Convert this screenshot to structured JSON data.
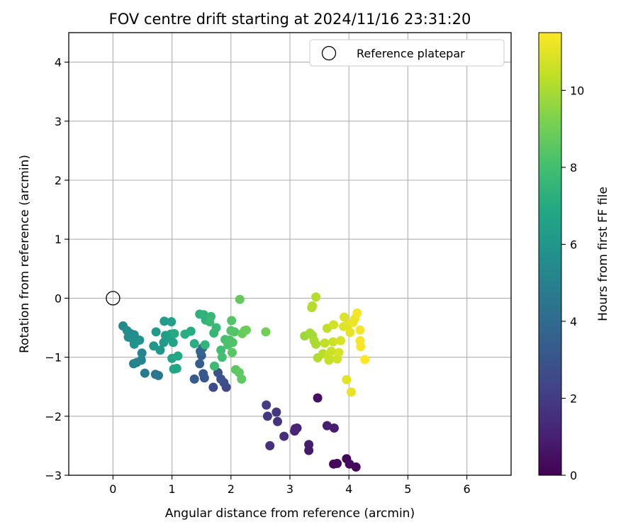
{
  "chart_data": {
    "type": "scatter",
    "title": "FOV centre drift starting at 2024/11/16 23:31:20",
    "xlabel": "Angular distance from reference (arcmin)",
    "ylabel": "Rotation from reference (arcmin)",
    "xlim": [
      -0.75,
      6.75
    ],
    "ylim": [
      -3,
      4.5
    ],
    "xticks": [
      0,
      1,
      2,
      3,
      4,
      5,
      6
    ],
    "yticks": [
      -3,
      -2,
      -1,
      0,
      1,
      2,
      3,
      4
    ],
    "grid": true,
    "legend": {
      "position": "top-right",
      "entries": [
        {
          "label": "Reference platepar",
          "marker": "open-circle"
        }
      ]
    },
    "reference_point": {
      "x": 0,
      "y": 0
    },
    "colorbar": {
      "label": "Hours from first FF file",
      "colormap": "viridis",
      "range": [
        0,
        11.5
      ],
      "ticks": [
        0,
        2,
        4,
        6,
        8,
        10
      ]
    },
    "points": [
      {
        "x": 3.74,
        "y": -2.81,
        "t": 0.2
      },
      {
        "x": 3.8,
        "y": -2.8,
        "t": 0.3
      },
      {
        "x": 3.96,
        "y": -2.72,
        "t": 0.1
      },
      {
        "x": 4.01,
        "y": -2.81,
        "t": 0.4
      },
      {
        "x": 4.12,
        "y": -2.86,
        "t": 0.2
      },
      {
        "x": 3.47,
        "y": -1.69,
        "t": 0.5
      },
      {
        "x": 3.32,
        "y": -2.48,
        "t": 0.9
      },
      {
        "x": 3.32,
        "y": -2.58,
        "t": 0.8
      },
      {
        "x": 3.08,
        "y": -2.25,
        "t": 1.1
      },
      {
        "x": 3.12,
        "y": -2.2,
        "t": 1.0
      },
      {
        "x": 3.09,
        "y": -2.21,
        "t": 1.2
      },
      {
        "x": 3.63,
        "y": -2.16,
        "t": 1.0
      },
      {
        "x": 3.75,
        "y": -2.2,
        "t": 0.9
      },
      {
        "x": 2.9,
        "y": -2.34,
        "t": 1.5
      },
      {
        "x": 2.79,
        "y": -2.09,
        "t": 1.7
      },
      {
        "x": 2.77,
        "y": -1.93,
        "t": 1.8
      },
      {
        "x": 2.62,
        "y": -2.0,
        "t": 1.9
      },
      {
        "x": 2.6,
        "y": -1.81,
        "t": 2.0
      },
      {
        "x": 2.66,
        "y": -2.5,
        "t": 1.6
      },
      {
        "x": 1.7,
        "y": -1.51,
        "t": 2.6
      },
      {
        "x": 1.92,
        "y": -1.51,
        "t": 2.5
      },
      {
        "x": 1.88,
        "y": -1.43,
        "t": 2.7
      },
      {
        "x": 1.83,
        "y": -1.37,
        "t": 2.8
      },
      {
        "x": 1.78,
        "y": -1.26,
        "t": 2.9
      },
      {
        "x": 1.55,
        "y": -1.35,
        "t": 3.1
      },
      {
        "x": 1.53,
        "y": -1.28,
        "t": 3.2
      },
      {
        "x": 1.38,
        "y": -1.37,
        "t": 3.3
      },
      {
        "x": 1.47,
        "y": -1.11,
        "t": 3.4
      },
      {
        "x": 1.5,
        "y": -0.97,
        "t": 3.5
      },
      {
        "x": 1.52,
        "y": -0.84,
        "t": 3.7
      },
      {
        "x": 1.48,
        "y": -0.9,
        "t": 3.8
      },
      {
        "x": 0.72,
        "y": -1.29,
        "t": 4.5
      },
      {
        "x": 0.77,
        "y": -1.31,
        "t": 4.6
      },
      {
        "x": 0.54,
        "y": -1.27,
        "t": 4.8
      },
      {
        "x": 0.35,
        "y": -1.11,
        "t": 5.0
      },
      {
        "x": 0.4,
        "y": -1.09,
        "t": 5.1
      },
      {
        "x": 0.48,
        "y": -1.05,
        "t": 5.2
      },
      {
        "x": 0.49,
        "y": -0.93,
        "t": 5.3
      },
      {
        "x": 0.17,
        "y": -0.47,
        "t": 5.4
      },
      {
        "x": 0.24,
        "y": -0.55,
        "t": 5.5
      },
      {
        "x": 0.26,
        "y": -0.66,
        "t": 5.6
      },
      {
        "x": 0.3,
        "y": -0.6,
        "t": 5.5
      },
      {
        "x": 0.34,
        "y": -0.7,
        "t": 5.7
      },
      {
        "x": 0.36,
        "y": -0.78,
        "t": 5.8
      },
      {
        "x": 0.45,
        "y": -0.71,
        "t": 5.9
      },
      {
        "x": 0.36,
        "y": -0.62,
        "t": 5.6
      },
      {
        "x": 0.69,
        "y": -0.81,
        "t": 6.0
      },
      {
        "x": 0.8,
        "y": -0.88,
        "t": 6.1
      },
      {
        "x": 0.86,
        "y": -0.75,
        "t": 6.2
      },
      {
        "x": 0.73,
        "y": -0.57,
        "t": 6.2
      },
      {
        "x": 0.87,
        "y": -0.39,
        "t": 6.3
      },
      {
        "x": 0.89,
        "y": -0.63,
        "t": 6.4
      },
      {
        "x": 0.92,
        "y": -0.67,
        "t": 6.4
      },
      {
        "x": 0.99,
        "y": -0.4,
        "t": 6.5
      },
      {
        "x": 0.98,
        "y": -0.61,
        "t": 6.5
      },
      {
        "x": 1.02,
        "y": -0.75,
        "t": 6.6
      },
      {
        "x": 1.0,
        "y": -1.02,
        "t": 6.7
      },
      {
        "x": 1.03,
        "y": -1.2,
        "t": 6.8
      },
      {
        "x": 1.08,
        "y": -1.19,
        "t": 6.8
      },
      {
        "x": 1.1,
        "y": -0.98,
        "t": 6.9
      },
      {
        "x": 1.04,
        "y": -0.6,
        "t": 7.0
      },
      {
        "x": 1.22,
        "y": -0.61,
        "t": 7.1
      },
      {
        "x": 1.32,
        "y": -0.56,
        "t": 7.1
      },
      {
        "x": 1.38,
        "y": -0.77,
        "t": 7.2
      },
      {
        "x": 1.47,
        "y": -0.27,
        "t": 7.3
      },
      {
        "x": 1.54,
        "y": -0.28,
        "t": 7.4
      },
      {
        "x": 1.57,
        "y": -0.37,
        "t": 7.4
      },
      {
        "x": 1.56,
        "y": -0.79,
        "t": 7.5
      },
      {
        "x": 1.66,
        "y": -0.31,
        "t": 7.6
      },
      {
        "x": 1.71,
        "y": -0.59,
        "t": 7.6
      },
      {
        "x": 1.75,
        "y": -0.5,
        "t": 7.7
      },
      {
        "x": 1.64,
        "y": -0.4,
        "t": 7.7
      },
      {
        "x": 1.72,
        "y": -1.15,
        "t": 7.8
      },
      {
        "x": 1.83,
        "y": -0.88,
        "t": 7.9
      },
      {
        "x": 1.85,
        "y": -1.0,
        "t": 8.0
      },
      {
        "x": 1.9,
        "y": -0.7,
        "t": 8.1
      },
      {
        "x": 1.95,
        "y": -0.79,
        "t": 8.2
      },
      {
        "x": 1.98,
        "y": -0.71,
        "t": 8.2
      },
      {
        "x": 2.03,
        "y": -0.75,
        "t": 8.3
      },
      {
        "x": 2.06,
        "y": -0.57,
        "t": 8.3
      },
      {
        "x": 2.0,
        "y": -0.55,
        "t": 8.4
      },
      {
        "x": 2.01,
        "y": -0.38,
        "t": 8.4
      },
      {
        "x": 2.02,
        "y": -0.92,
        "t": 8.5
      },
      {
        "x": 2.08,
        "y": -1.21,
        "t": 8.5
      },
      {
        "x": 2.14,
        "y": -1.26,
        "t": 8.6
      },
      {
        "x": 2.18,
        "y": -1.37,
        "t": 8.6
      },
      {
        "x": 2.15,
        "y": -0.02,
        "t": 8.7
      },
      {
        "x": 2.19,
        "y": -0.6,
        "t": 8.8
      },
      {
        "x": 2.23,
        "y": -0.55,
        "t": 8.8
      },
      {
        "x": 2.26,
        "y": -0.54,
        "t": 8.9
      },
      {
        "x": 2.59,
        "y": -0.57,
        "t": 9.0
      },
      {
        "x": 3.25,
        "y": -0.64,
        "t": 9.8
      },
      {
        "x": 3.34,
        "y": -0.59,
        "t": 9.9
      },
      {
        "x": 3.38,
        "y": -0.63,
        "t": 9.9
      },
      {
        "x": 3.41,
        "y": -0.72,
        "t": 10.0
      },
      {
        "x": 3.44,
        "y": -0.78,
        "t": 10.0
      },
      {
        "x": 3.47,
        "y": -1.01,
        "t": 10.1
      },
      {
        "x": 3.37,
        "y": -0.16,
        "t": 10.1
      },
      {
        "x": 3.38,
        "y": -0.13,
        "t": 10.2
      },
      {
        "x": 3.44,
        "y": 0.02,
        "t": 10.2
      },
      {
        "x": 3.56,
        "y": -0.94,
        "t": 10.3
      },
      {
        "x": 3.59,
        "y": -0.76,
        "t": 10.4
      },
      {
        "x": 3.63,
        "y": -0.51,
        "t": 10.4
      },
      {
        "x": 3.65,
        "y": -0.97,
        "t": 10.5
      },
      {
        "x": 3.66,
        "y": -1.05,
        "t": 10.5
      },
      {
        "x": 3.7,
        "y": -0.9,
        "t": 10.6
      },
      {
        "x": 3.73,
        "y": -0.74,
        "t": 10.6
      },
      {
        "x": 3.74,
        "y": -0.45,
        "t": 10.7
      },
      {
        "x": 3.8,
        "y": -1.03,
        "t": 10.7
      },
      {
        "x": 3.83,
        "y": -0.92,
        "t": 10.8
      },
      {
        "x": 3.86,
        "y": -0.72,
        "t": 10.8
      },
      {
        "x": 3.91,
        "y": -0.48,
        "t": 10.9
      },
      {
        "x": 3.92,
        "y": -0.32,
        "t": 10.9
      },
      {
        "x": 3.96,
        "y": -1.38,
        "t": 11.0
      },
      {
        "x": 3.99,
        "y": -0.45,
        "t": 11.0
      },
      {
        "x": 4.02,
        "y": -0.58,
        "t": 11.1
      },
      {
        "x": 4.04,
        "y": -1.59,
        "t": 11.1
      },
      {
        "x": 4.07,
        "y": -0.41,
        "t": 11.2
      },
      {
        "x": 4.1,
        "y": -0.35,
        "t": 11.2
      },
      {
        "x": 4.14,
        "y": -0.25,
        "t": 11.3
      },
      {
        "x": 4.19,
        "y": -0.54,
        "t": 11.3
      },
      {
        "x": 4.19,
        "y": -0.72,
        "t": 11.4
      },
      {
        "x": 4.2,
        "y": -0.82,
        "t": 11.4
      },
      {
        "x": 4.27,
        "y": -1.04,
        "t": 11.5
      }
    ]
  }
}
